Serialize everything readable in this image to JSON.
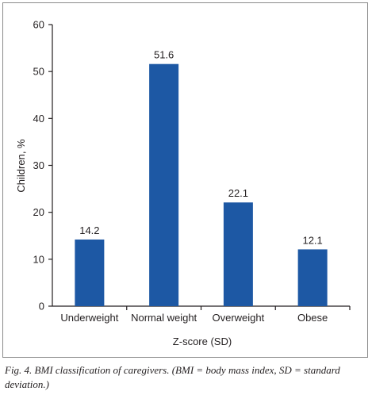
{
  "colors": {
    "bar": "#1d58a4",
    "text": "#231f20",
    "frame": "#8a8a8a"
  },
  "chart_data": {
    "type": "bar",
    "categories": [
      "Underweight",
      "Normal weight",
      "Overweight",
      "Obese"
    ],
    "values": [
      14.2,
      51.6,
      22.1,
      12.1
    ],
    "value_labels": [
      "14.2",
      "51.6",
      "22.1",
      "12.1"
    ],
    "xlabel": "Z-score (SD)",
    "ylabel": "Children, %",
    "ylim": [
      0,
      60
    ],
    "yticks": [
      0,
      10,
      20,
      30,
      40,
      50,
      60
    ],
    "grid": false,
    "legend": "none"
  },
  "caption": "Fig. 4. BMI classification of caregivers. (BMI = body mass index, SD = standard deviation.)"
}
